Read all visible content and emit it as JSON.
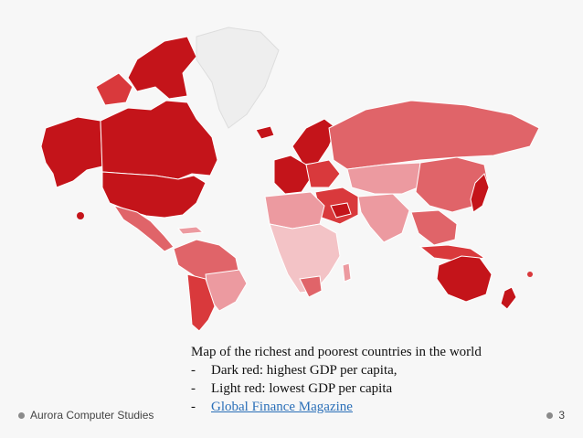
{
  "map": {
    "legend_colors": {
      "darkest": "#c4141a",
      "dark": "#d9393c",
      "medium": "#e06469",
      "light": "#ec9aa0",
      "lightest": "#f3c3c6",
      "greenland": "#eeeeee",
      "outline": "#ffffff"
    }
  },
  "caption": {
    "title": "Map of the richest and poorest countries in the world",
    "items": [
      {
        "dash": "-",
        "text": "Dark red: highest GDP per capita,"
      },
      {
        "dash": "-",
        "text": "Light red: lowest GDP per capita"
      },
      {
        "dash": "-",
        "link": "Global Finance Magazine"
      }
    ]
  },
  "footer": {
    "left": "Aurora Computer Studies",
    "page_number": "3"
  }
}
